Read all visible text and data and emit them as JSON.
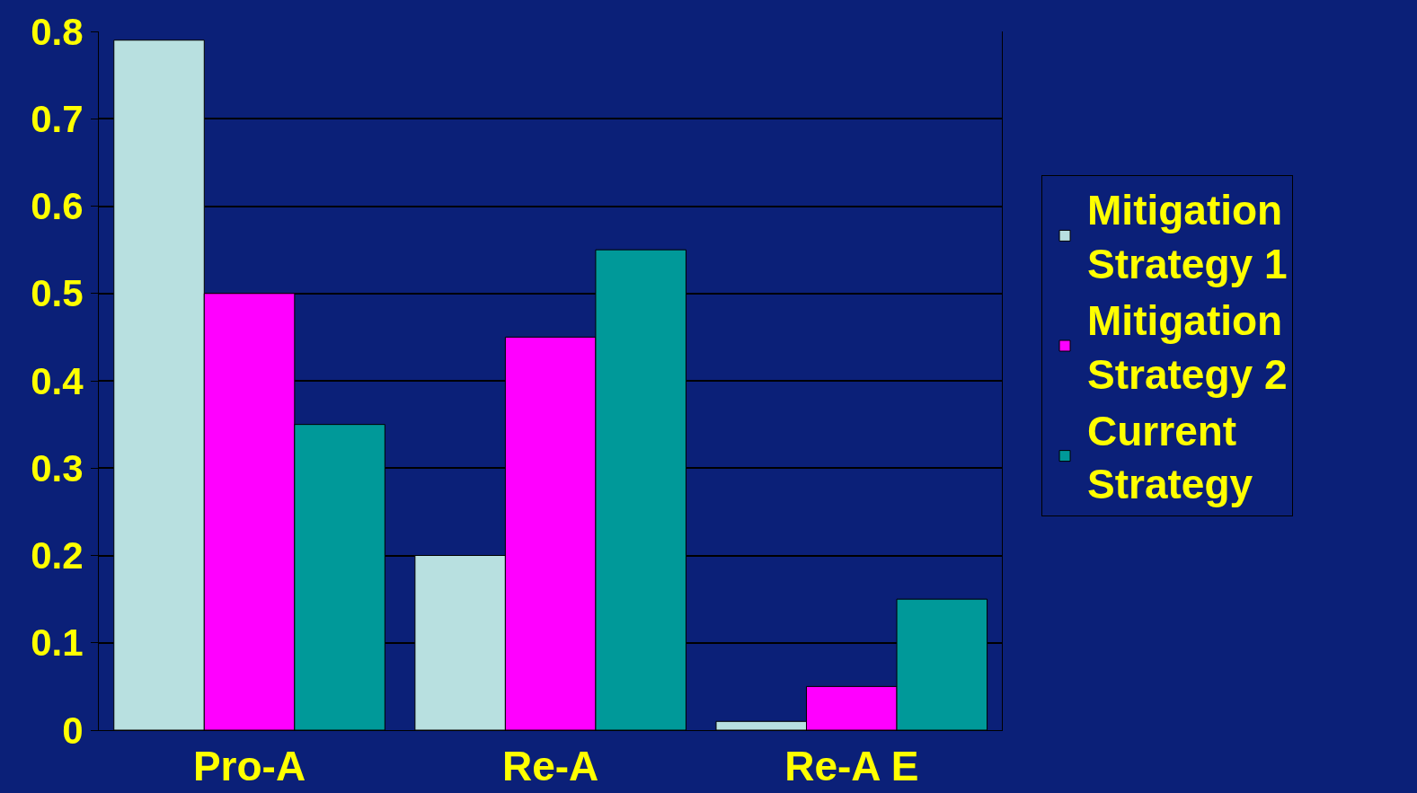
{
  "chart_data": {
    "type": "bar",
    "categories": [
      "Pro-A",
      "Re-A",
      "Re-A E"
    ],
    "series": [
      {
        "name": "Mitigation Strategy 1",
        "color": "#b8e0e0",
        "values": [
          0.79,
          0.2,
          0.01
        ]
      },
      {
        "name": "Mitigation Strategy 2",
        "color": "#ff00ff",
        "values": [
          0.5,
          0.45,
          0.05
        ]
      },
      {
        "name": "Current Strategy",
        "color": "#009999",
        "values": [
          0.35,
          0.55,
          0.15
        ]
      }
    ],
    "ylim": [
      0,
      0.8
    ],
    "yticks": [
      0,
      0.1,
      0.2,
      0.3,
      0.4,
      0.5,
      0.6,
      0.7,
      0.8
    ],
    "grid": "y",
    "legend": "right"
  }
}
